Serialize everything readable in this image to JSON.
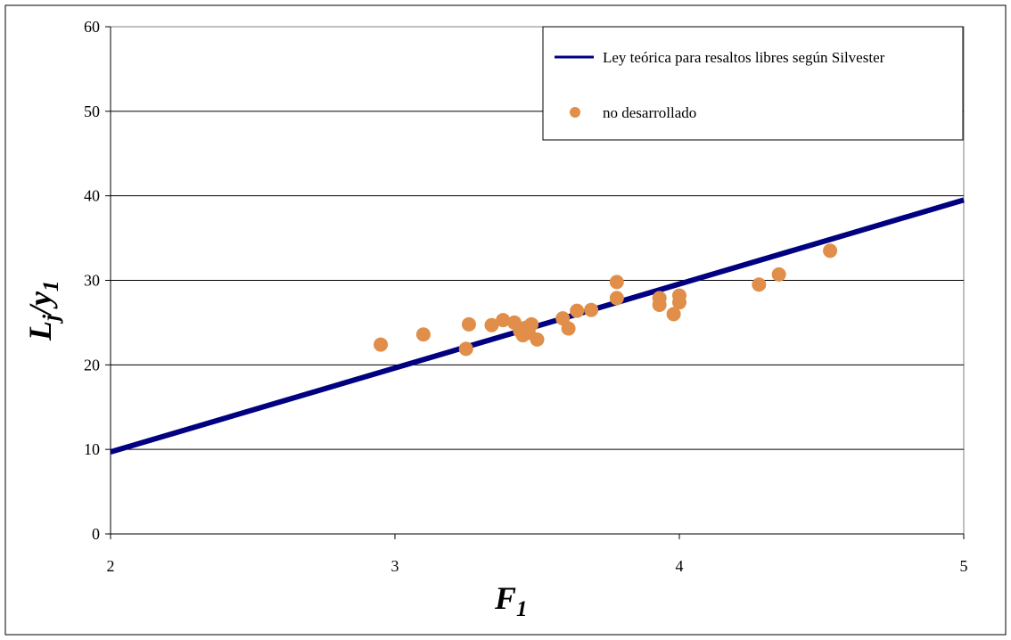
{
  "chart_data": {
    "type": "scatter",
    "xlabel": {
      "main": "F",
      "sub": "1"
    },
    "ylabel": {
      "main": "L",
      "sub1": "j",
      "sep": "/y",
      "sub2": "1"
    },
    "xlim": [
      2,
      5
    ],
    "ylim": [
      0,
      60
    ],
    "x_ticks": [
      "2",
      "3",
      "4",
      "5"
    ],
    "y_ticks": [
      "0",
      "10",
      "20",
      "30",
      "40",
      "50",
      "60"
    ],
    "grid": {
      "horizontal": true,
      "vertical": false
    },
    "legend_position": "top-right",
    "series": [
      {
        "name": "Ley teórica para resaltos libres según Silvester",
        "kind": "line",
        "color": "#000080",
        "x": [
          2,
          5
        ],
        "y": [
          9.7,
          39.5
        ]
      },
      {
        "name": "no desarrollado",
        "kind": "scatter",
        "color": "#E08E4A",
        "x": [
          2.95,
          3.1,
          3.25,
          3.26,
          3.34,
          3.38,
          3.42,
          3.44,
          3.45,
          3.46,
          3.47,
          3.48,
          3.5,
          3.59,
          3.61,
          3.64,
          3.69,
          3.78,
          3.78,
          3.93,
          3.93,
          3.98,
          4.0,
          4.0,
          4.28,
          4.35,
          4.53
        ],
        "y": [
          22.4,
          23.6,
          21.9,
          24.8,
          24.7,
          25.3,
          25.0,
          24.0,
          23.5,
          24.4,
          23.8,
          24.8,
          23.0,
          25.5,
          24.3,
          26.4,
          26.5,
          27.9,
          29.8,
          27.1,
          27.9,
          26.0,
          27.4,
          28.2,
          29.5,
          30.7,
          33.5
        ]
      }
    ]
  }
}
